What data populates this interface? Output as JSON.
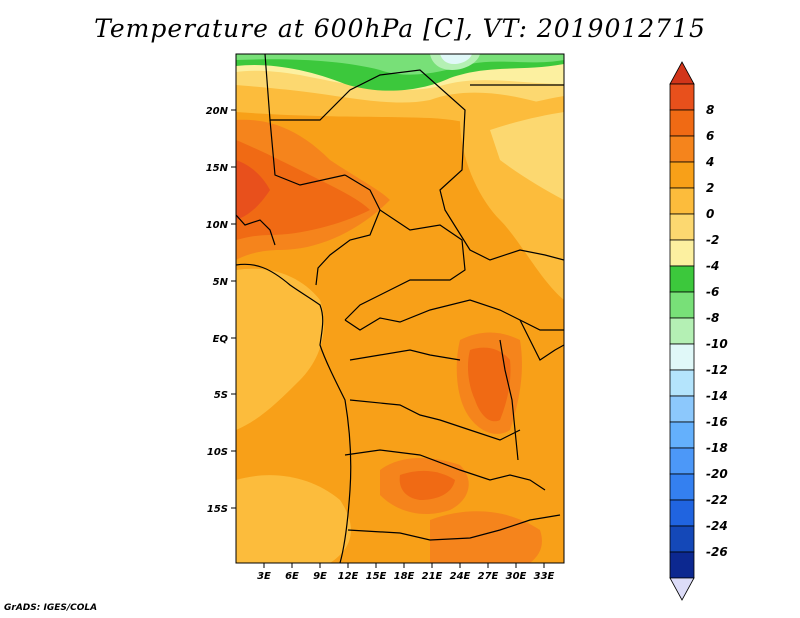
{
  "title": "Temperature at 600hPa [C], VT: 2019012715",
  "credit": "GrADS: IGES/COLA",
  "map": {
    "lat_labels": [
      "20N",
      "15N",
      "10N",
      "5N",
      "EQ",
      "5S",
      "10S",
      "15S"
    ],
    "lon_labels": [
      "3E",
      "6E",
      "9E",
      "12E",
      "15E",
      "18E",
      "21E",
      "24E",
      "27E",
      "30E",
      "33E"
    ]
  },
  "colorbar": {
    "labels": [
      "8",
      "6",
      "4",
      "2",
      "0",
      "-2",
      "-4",
      "-6",
      "-8",
      "-10",
      "-12",
      "-14",
      "-16",
      "-18",
      "-20",
      "-22",
      "-24",
      "-26"
    ],
    "colors": [
      "#e8501c",
      "#f06a14",
      "#f5841c",
      "#f8a018",
      "#fcbc3c",
      "#fcd870",
      "#fcf0a0",
      "#3cc83c",
      "#78e078",
      "#b4f0b4",
      "#e0f8f8",
      "#b4e4fc",
      "#8cc8fc",
      "#64b0fc",
      "#4c98f8",
      "#3480f0",
      "#2064e0",
      "#1448b8",
      "#0c2890"
    ],
    "top_color": "#d2351a",
    "bottom_color": "#dcdcf8"
  }
}
